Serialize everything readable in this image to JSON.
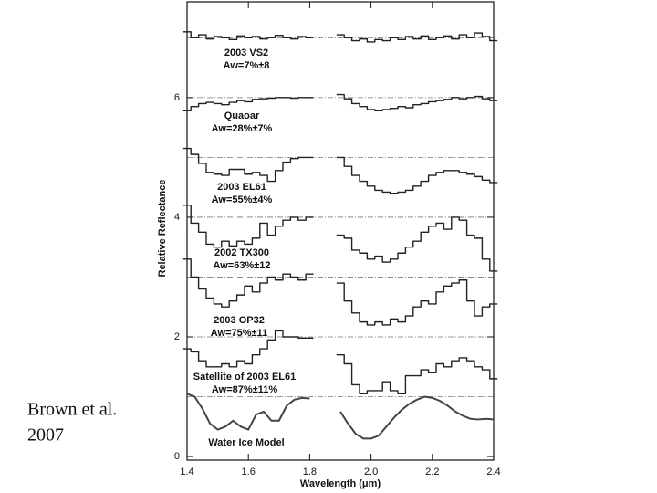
{
  "chart_data": {
    "type": "line",
    "step": true,
    "xlabel": "Wavelength (μm)",
    "ylabel": "Relative Reflectance",
    "source": [
      "Brown et al.",
      "2007"
    ],
    "xlim": [
      1.4,
      2.4
    ],
    "ylim": [
      -0.06,
      7.6
    ],
    "xticks": [
      1.4,
      1.6,
      1.8,
      {
        "value": 2,
        "label": "2.0"
      },
      2.2,
      2.4
    ],
    "yticks": [
      0,
      2,
      4,
      6
    ],
    "reference_lines": [
      1,
      2,
      3,
      4,
      5,
      6,
      7
    ],
    "x": [
      1.4,
      1.425,
      1.45,
      1.475,
      1.5,
      1.525,
      1.55,
      1.575,
      1.6,
      1.625,
      1.65,
      1.675,
      1.7,
      1.725,
      1.75,
      1.775,
      1.8,
      1.85,
      1.9,
      1.925,
      1.95,
      1.975,
      2.0,
      2.025,
      2.05,
      2.075,
      2.1,
      2.125,
      2.15,
      2.175,
      2.2,
      2.225,
      2.25,
      2.275,
      2.3,
      2.325,
      2.35,
      2.375,
      2.4
    ],
    "series": [
      {
        "name": "2003 VS2",
        "albedo": "Aw=7%±8",
        "color": "#222222",
        "values": [
          7.1,
          7.0,
          7.05,
          6.98,
          7.02,
          7.0,
          6.97,
          7.03,
          7.0,
          7.02,
          6.98,
          7.0,
          7.04,
          7.0,
          6.98,
          7.02,
          7.0,
          null,
          7.05,
          7.0,
          6.95,
          6.98,
          6.93,
          6.97,
          6.95,
          7.0,
          6.97,
          7.02,
          6.98,
          7.03,
          6.97,
          7.0,
          7.03,
          6.98,
          7.05,
          7.0,
          7.08,
          7.02,
          6.95
        ]
      },
      {
        "name": "Quaoar",
        "albedo": "Aw=28%±7%",
        "color": "#222222",
        "values": [
          5.78,
          5.85,
          5.9,
          5.92,
          5.9,
          5.88,
          5.92,
          5.95,
          5.93,
          5.97,
          5.98,
          5.99,
          6.0,
          6.0,
          5.99,
          6.0,
          6.0,
          null,
          6.05,
          5.98,
          5.9,
          5.85,
          5.8,
          5.78,
          5.8,
          5.82,
          5.85,
          5.83,
          5.88,
          5.9,
          5.93,
          5.95,
          5.97,
          6.0,
          5.98,
          6.0,
          6.02,
          5.98,
          5.95
        ]
      },
      {
        "name": "2003 EL61",
        "albedo": "Aw=55%±4%",
        "color": "#222222",
        "values": [
          5.15,
          5.05,
          4.9,
          4.75,
          4.72,
          4.7,
          4.8,
          4.8,
          4.72,
          4.75,
          4.7,
          4.6,
          4.78,
          4.92,
          4.98,
          5.0,
          5.0,
          null,
          5.0,
          4.85,
          4.7,
          4.6,
          4.52,
          4.45,
          4.42,
          4.4,
          4.42,
          4.45,
          4.52,
          4.6,
          4.7,
          4.75,
          4.78,
          4.78,
          4.75,
          4.72,
          4.68,
          4.62,
          4.58
        ]
      },
      {
        "name": "2002 TX300",
        "albedo": "Aw=63%±12",
        "color": "#222222",
        "values": [
          4.2,
          3.9,
          3.75,
          3.55,
          3.5,
          3.6,
          3.52,
          3.6,
          3.55,
          3.65,
          3.9,
          3.7,
          3.85,
          3.95,
          4.0,
          3.95,
          4.0,
          null,
          3.7,
          3.65,
          3.45,
          3.4,
          3.3,
          3.35,
          3.25,
          3.3,
          3.4,
          3.5,
          3.6,
          3.75,
          3.85,
          3.9,
          3.8,
          4.0,
          3.95,
          3.7,
          3.65,
          3.3,
          3.1
        ]
      },
      {
        "name": "2003 OP32",
        "albedo": "Aw=75%±11",
        "color": "#222222",
        "values": [
          3.3,
          3.0,
          2.8,
          2.65,
          2.55,
          2.5,
          2.6,
          2.7,
          2.85,
          2.75,
          2.9,
          3.0,
          2.95,
          3.05,
          3.0,
          2.95,
          3.05,
          null,
          2.9,
          2.6,
          2.4,
          2.25,
          2.2,
          2.25,
          2.2,
          2.3,
          2.25,
          2.35,
          2.5,
          2.6,
          2.55,
          2.75,
          2.85,
          2.9,
          2.95,
          2.6,
          2.35,
          2.5,
          2.55
        ]
      },
      {
        "name": "Satellite of 2003 EL61",
        "albedo": "Aw=87%±11%",
        "color": "#222222",
        "values": [
          1.8,
          1.75,
          1.6,
          1.5,
          1.5,
          1.55,
          1.5,
          1.6,
          1.55,
          1.7,
          1.8,
          1.95,
          2.1,
          2.0,
          2.0,
          1.98,
          1.98,
          null,
          1.7,
          1.55,
          1.2,
          1.05,
          1.1,
          1.1,
          1.25,
          1.1,
          1.05,
          1.35,
          1.35,
          1.45,
          1.4,
          1.55,
          1.5,
          1.6,
          1.65,
          1.6,
          1.5,
          1.45,
          1.3
        ]
      },
      {
        "name": "Water Ice Model",
        "color": "#444444",
        "smooth": true,
        "values": [
          1.05,
          1.0,
          0.8,
          0.55,
          0.45,
          0.5,
          0.6,
          0.5,
          0.45,
          0.7,
          0.75,
          0.6,
          0.6,
          0.85,
          0.95,
          0.98,
          0.97,
          null,
          0.75,
          0.55,
          0.38,
          0.3,
          0.3,
          0.35,
          0.5,
          0.65,
          0.78,
          0.88,
          0.95,
          1.0,
          0.98,
          0.93,
          0.85,
          0.75,
          0.68,
          0.63,
          0.62,
          0.63,
          0.62
        ]
      }
    ]
  }
}
